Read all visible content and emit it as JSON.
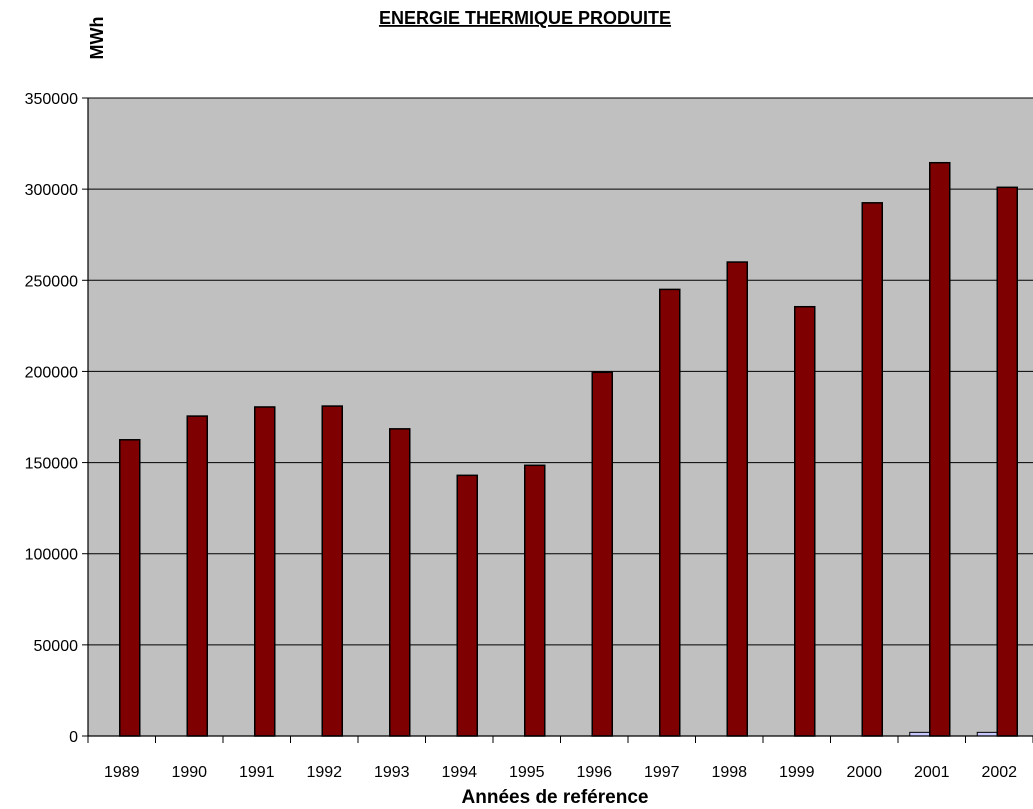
{
  "chart_data": {
    "type": "bar",
    "title": "ENERGIE THERMIQUE PRODUITE",
    "ylabel": "MWh",
    "xlabel": "Années de reférence",
    "ylim": [
      0,
      350000
    ],
    "yticks": [
      "0",
      "50000",
      "100000",
      "150000",
      "200000",
      "250000",
      "300000",
      "350000"
    ],
    "grid": true,
    "legend": "none",
    "categories": [
      "1989",
      "1990",
      "1991",
      "1992",
      "1993",
      "1994",
      "1995",
      "1996",
      "1997",
      "1998",
      "1999",
      "2000",
      "2001",
      "2002"
    ],
    "series": [
      {
        "color": "#7f0000",
        "values": [
          0,
          0,
          0,
          0,
          0,
          0,
          0,
          0,
          0,
          0,
          0,
          0,
          2000,
          2000
        ]
      },
      {
        "color": "#7f0000",
        "values": [
          162500,
          175500,
          180500,
          181000,
          168500,
          143000,
          148500,
          199500,
          245000,
          260000,
          235500,
          292500,
          314500,
          301000
        ]
      }
    ],
    "small_series_color": "#c8c8ff",
    "plot_background": "#c0c0c0"
  }
}
